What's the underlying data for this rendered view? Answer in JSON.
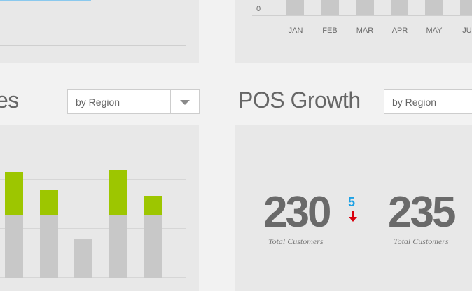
{
  "top_right_chart": {
    "zero_label": "0",
    "months": [
      "JAN",
      "FEB",
      "MAR",
      "APR",
      "MAY",
      "JU"
    ]
  },
  "left_section": {
    "title_fragment": "es",
    "select_value": "by Region"
  },
  "right_section": {
    "title": "POS Growth",
    "select_value": "by Region"
  },
  "stats": [
    {
      "value": "230",
      "caption": "Total Customers",
      "delta": "5",
      "delta_direction": "down"
    },
    {
      "value": "235",
      "caption": "Total Customers"
    }
  ],
  "colors": {
    "accent_green": "#9dc600",
    "bar_gray": "#c8c8c8",
    "delta_blue": "#1da1e5",
    "down_red": "#d9000d"
  },
  "chart_data": {
    "type": "bar",
    "stacked": true,
    "series": [
      {
        "values": [
          90,
          90,
          57,
          90,
          90
        ]
      },
      {
        "values": [
          62,
          37,
          0,
          65,
          28
        ]
      }
    ],
    "grid": true
  }
}
